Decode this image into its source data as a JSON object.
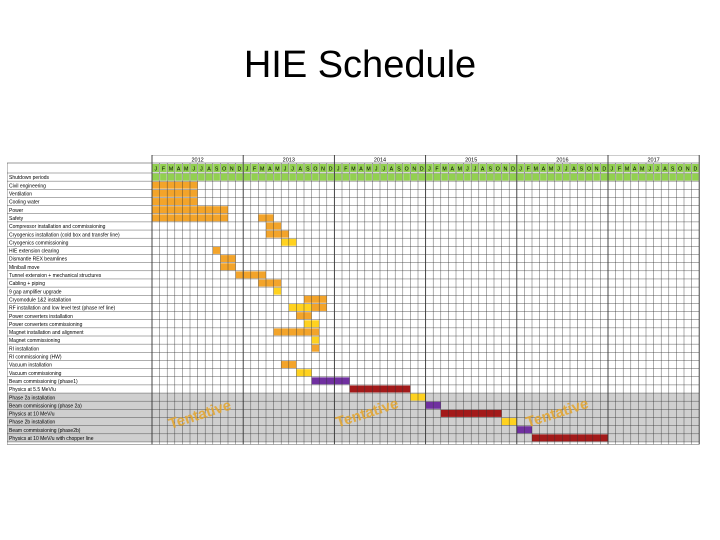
{
  "slide": {
    "title": "HIE Schedule"
  },
  "schedule": {
    "years": [
      "2012",
      "2013",
      "2014",
      "2015",
      "2016",
      "2017"
    ],
    "months": [
      "J",
      "F",
      "M",
      "A",
      "M",
      "J",
      "J",
      "A",
      "S",
      "O",
      "N",
      "D",
      "J",
      "F",
      "M",
      "A",
      "M",
      "J",
      "J",
      "A",
      "S",
      "O",
      "N",
      "D",
      "J",
      "F",
      "M",
      "A",
      "M",
      "J",
      "J",
      "A",
      "S",
      "O",
      "N",
      "D",
      "J",
      "F",
      "M",
      "A",
      "M",
      "J",
      "J",
      "A",
      "S",
      "O",
      "N",
      "D",
      "J",
      "F",
      "M",
      "A",
      "M",
      "J",
      "J",
      "A",
      "S",
      "O",
      "N",
      "D",
      "J",
      "F",
      "M",
      "A",
      "M",
      "J",
      "J",
      "A",
      "S",
      "O",
      "N",
      "D"
    ],
    "colors": {
      "green": "#92d050",
      "orange": "#f3a42a",
      "yellow": "#ffd21f",
      "purple": "#7030a0",
      "red": "#a31a1a",
      "shade": "#cfcfcf",
      "watermark": "#e4a42c"
    },
    "shutdown_months": [
      0,
      1,
      2,
      3,
      4,
      5,
      6,
      7,
      8,
      9,
      10,
      11,
      12,
      13,
      14,
      15,
      16,
      17,
      18,
      19,
      20,
      21,
      22,
      23,
      24,
      25,
      26,
      27,
      28,
      29,
      30,
      31,
      32,
      33,
      34,
      35,
      36,
      37,
      38,
      39,
      40,
      41,
      42,
      43,
      44,
      45,
      46,
      47,
      48,
      49,
      50,
      51,
      52,
      53,
      54,
      55,
      56,
      57,
      58,
      59,
      60,
      61,
      62,
      63,
      64,
      65,
      66,
      67,
      68,
      69,
      70,
      71
    ],
    "rows": [
      {
        "label": "Shutdown periods",
        "bars": []
      },
      {
        "label": "Civil engineering",
        "bars": [
          {
            "start": 0,
            "end": 6,
            "color": "orange"
          }
        ]
      },
      {
        "label": "Ventilation",
        "bars": [
          {
            "start": 0,
            "end": 6,
            "color": "orange"
          }
        ]
      },
      {
        "label": "Cooling water",
        "bars": [
          {
            "start": 0,
            "end": 6,
            "color": "orange"
          }
        ]
      },
      {
        "label": "Power",
        "bars": [
          {
            "start": 0,
            "end": 10,
            "color": "orange"
          }
        ]
      },
      {
        "label": "Safety",
        "bars": [
          {
            "start": 0,
            "end": 10,
            "color": "orange"
          },
          {
            "start": 14,
            "end": 16,
            "color": "orange"
          }
        ]
      },
      {
        "label": "Compressor installation and commissioning",
        "bars": [
          {
            "start": 15,
            "end": 17,
            "color": "orange"
          }
        ]
      },
      {
        "label": "Cryogenics installation (cold box and transfer line)",
        "bars": [
          {
            "start": 15,
            "end": 18,
            "color": "orange"
          }
        ]
      },
      {
        "label": "Cryogenics commissioning",
        "bars": [
          {
            "start": 17,
            "end": 19,
            "color": "yellow"
          }
        ]
      },
      {
        "label": "HIE extension clearing",
        "bars": [
          {
            "start": 8,
            "end": 9,
            "color": "orange"
          }
        ]
      },
      {
        "label": "Dismantle REX beamlines",
        "bars": [
          {
            "start": 9,
            "end": 11,
            "color": "orange"
          }
        ]
      },
      {
        "label": "Miniball move",
        "bars": [
          {
            "start": 9,
            "end": 11,
            "color": "orange"
          }
        ]
      },
      {
        "label": "Tunnel extension + mechanical structures",
        "bars": [
          {
            "start": 11,
            "end": 15,
            "color": "orange"
          }
        ]
      },
      {
        "label": "Cabling + piping",
        "bars": [
          {
            "start": 14,
            "end": 17,
            "color": "orange"
          }
        ]
      },
      {
        "label": "9 gap amplifier upgrade",
        "bars": [
          {
            "start": 16,
            "end": 17,
            "color": "yellow"
          }
        ]
      },
      {
        "label": "Cryomodule 1&2 installation",
        "bars": [
          {
            "start": 20,
            "end": 23,
            "color": "orange"
          }
        ]
      },
      {
        "label": "RF installation and low level test (phase ref line)",
        "bars": [
          {
            "start": 18,
            "end": 21,
            "color": "yellow"
          },
          {
            "start": 21,
            "end": 23,
            "color": "orange"
          }
        ]
      },
      {
        "label": "Power converters installation",
        "bars": [
          {
            "start": 19,
            "end": 21,
            "color": "orange"
          }
        ]
      },
      {
        "label": "Power converters commissioning",
        "bars": [
          {
            "start": 20,
            "end": 22,
            "color": "yellow"
          }
        ]
      },
      {
        "label": "Magnet installation and alignment",
        "bars": [
          {
            "start": 16,
            "end": 22,
            "color": "orange"
          }
        ]
      },
      {
        "label": "Magnet commissioning",
        "bars": [
          {
            "start": 21,
            "end": 22,
            "color": "yellow"
          }
        ]
      },
      {
        "label": "RI installation",
        "bars": [
          {
            "start": 21,
            "end": 22,
            "color": "orange"
          }
        ]
      },
      {
        "label": "RI commissioning (HW)",
        "bars": []
      },
      {
        "label": "Vacuum installation",
        "bars": [
          {
            "start": 17,
            "end": 19,
            "color": "orange"
          }
        ]
      },
      {
        "label": "Vacuum commissioning",
        "bars": [
          {
            "start": 19,
            "end": 21,
            "color": "yellow"
          }
        ]
      },
      {
        "label": "Beam commissioning (phase1)",
        "bars": [
          {
            "start": 21,
            "end": 26,
            "color": "purple"
          }
        ]
      },
      {
        "label": "Physics at 5.5 MeV/u",
        "bars": [
          {
            "start": 26,
            "end": 34,
            "color": "red"
          }
        ]
      },
      {
        "label": "Phase 2a installation",
        "bars": [
          {
            "start": 34,
            "end": 36,
            "color": "yellow"
          }
        ],
        "shaded": true
      },
      {
        "label": "Beam commissioning (phase 2a)",
        "bars": [
          {
            "start": 36,
            "end": 38,
            "color": "purple"
          }
        ],
        "shaded": true
      },
      {
        "label": "Physics at 10 MeV/u",
        "bars": [
          {
            "start": 38,
            "end": 46,
            "color": "red"
          }
        ],
        "shaded": true
      },
      {
        "label": "Phase 2b installation",
        "bars": [
          {
            "start": 46,
            "end": 48,
            "color": "yellow"
          }
        ],
        "shaded": true
      },
      {
        "label": "Beam commissioning (phase2b)",
        "bars": [
          {
            "start": 48,
            "end": 50,
            "color": "purple"
          }
        ],
        "shaded": true
      },
      {
        "label": "Physics at 10 MeV/u with chopper line",
        "bars": [
          {
            "start": 50,
            "end": 60,
            "color": "red"
          }
        ],
        "shaded": true
      }
    ],
    "watermarks": [
      "Tentative",
      "Tentative",
      "Tentative"
    ]
  }
}
